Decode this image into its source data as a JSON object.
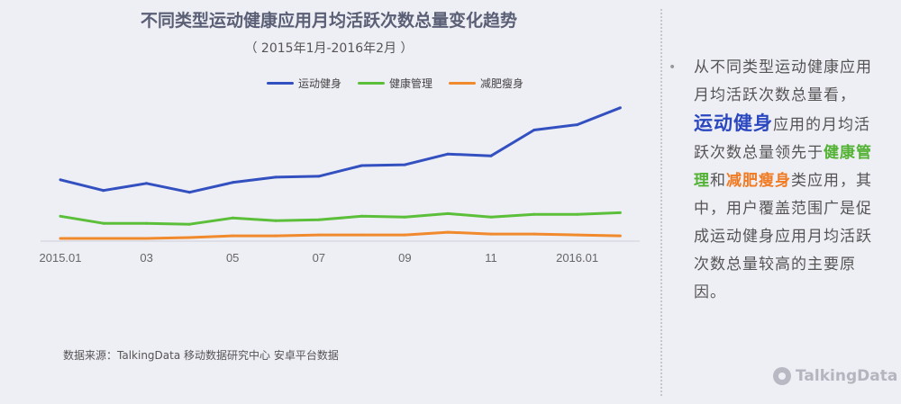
{
  "title": "不同类型运动健康应用月均活跃次数总量变化趋势",
  "subtitle": "（  2015年1月-2016年2月  ）",
  "colors": {
    "fitness": "#3350c0",
    "health": "#5cbf3a",
    "diet": "#f08a2c"
  },
  "chart_data": {
    "type": "line",
    "categories": [
      "2015.01",
      "02",
      "03",
      "04",
      "05",
      "06",
      "07",
      "08",
      "09",
      "10",
      "11",
      "12",
      "2016.01",
      "02"
    ],
    "x_tick_labels": [
      "2015.01",
      "03",
      "05",
      "07",
      "09",
      "11",
      "2016.01"
    ],
    "series": [
      {
        "name": "运动健身",
        "values": [
          67,
          55,
          63,
          53,
          64,
          70,
          71,
          83,
          84,
          96,
          94,
          123,
          129,
          148
        ]
      },
      {
        "name": "健康管理",
        "values": [
          26,
          18,
          18,
          17,
          24,
          21,
          22,
          26,
          25,
          29,
          25,
          28,
          28,
          30
        ]
      },
      {
        "name": "减肥瘦身",
        "values": [
          1,
          1,
          1,
          2,
          4,
          4,
          5,
          5,
          5,
          8,
          6,
          6,
          5,
          4
        ]
      }
    ],
    "ylim": [
      0,
      160
    ],
    "grid": false,
    "legend": "top-center"
  },
  "side": {
    "bullet": "•",
    "text1": "从不同类型运动健康应用月均活跃次数总量看，",
    "hl1": "运动健身",
    "text2": "应用的月均活跃次数总量领先于",
    "hl2": "健康管理",
    "text3": "和",
    "hl3": "减肥瘦身",
    "text4": "类应用，其中，用户覆盖范围广是促成运动健身应用月均活跃次数总量较高的主要原因。"
  },
  "source": "数据来源：TalkingData 移动数据研究中心 安卓平台数据",
  "logo": "TalkingData"
}
